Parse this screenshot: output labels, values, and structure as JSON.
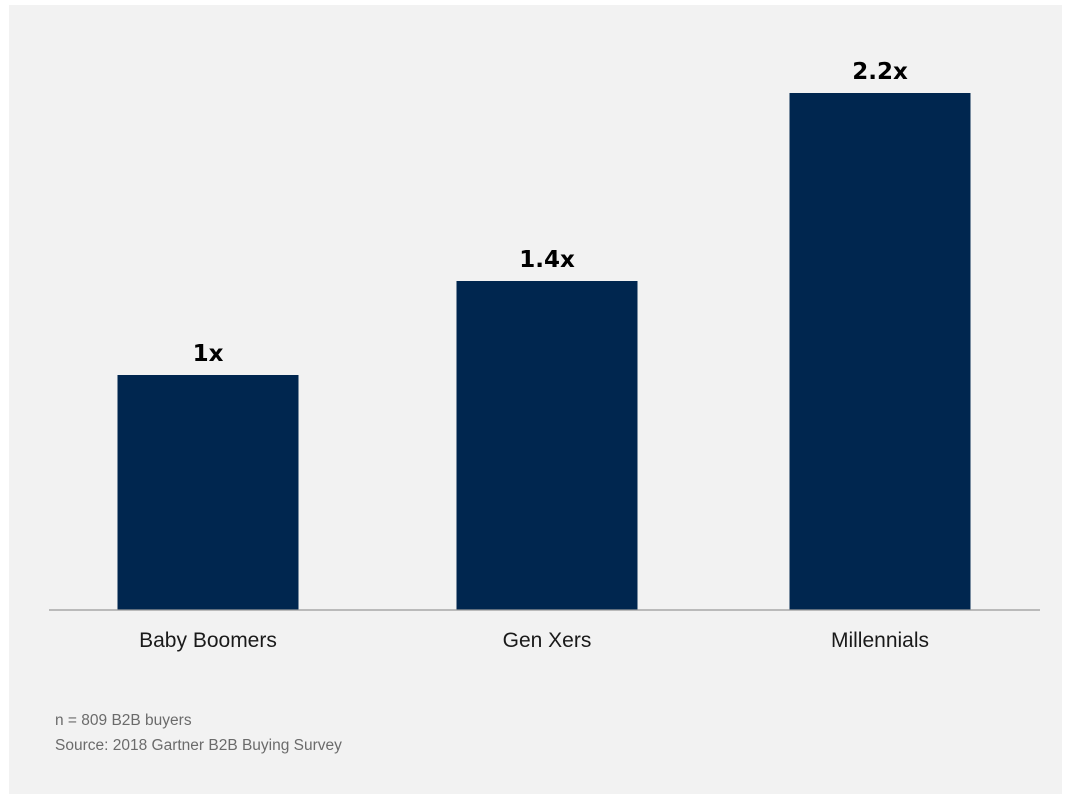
{
  "chart_data": {
    "type": "bar",
    "categories": [
      "Baby Boomers",
      "Gen Xers",
      "Millennials"
    ],
    "values": [
      1,
      1.4,
      2.2
    ],
    "data_labels": [
      "1x",
      "1.4x",
      "2.2x"
    ],
    "title": "",
    "xlabel": "",
    "ylabel": "",
    "ylim": [
      0,
      2.2
    ],
    "grid": false,
    "legend": "none",
    "bar_color": "#00264f",
    "baseline_color": "#999999",
    "background": "#f2f2f2"
  },
  "notes": {
    "sample": "n = 809 B2B buyers",
    "source": "Source: 2018 Gartner B2B Buying Survey"
  }
}
